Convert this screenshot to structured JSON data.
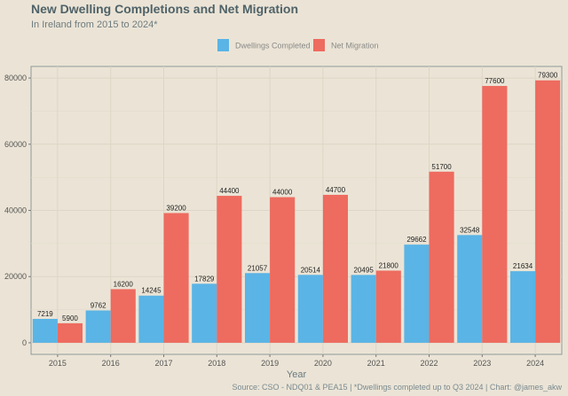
{
  "chart_data": {
    "type": "bar",
    "title": "New Dwelling Completions and Net Migration",
    "subtitle": "In Ireland from 2015 to 2024*",
    "xlabel": "Year",
    "ylabel": "",
    "caption": "Source: CSO - NDQ01 & PEA15 | *Dwellings completed up to Q3 2024 | Chart: @james_akw",
    "categories": [
      "2015",
      "2016",
      "2017",
      "2018",
      "2019",
      "2020",
      "2021",
      "2022",
      "2023",
      "2024"
    ],
    "series": [
      {
        "name": "Dwellings Completed",
        "color": "#5ab4e5",
        "values": [
          7219,
          9762,
          14245,
          17829,
          21057,
          20514,
          20495,
          29662,
          32548,
          21634
        ]
      },
      {
        "name": "Net Migration",
        "color": "#ee6b5f",
        "values": [
          5900,
          16200,
          39200,
          44400,
          44000,
          44700,
          21800,
          51700,
          77600,
          79300
        ]
      }
    ],
    "ylim": [
      -3500,
      83500
    ],
    "yticks": [
      0,
      20000,
      40000,
      60000,
      80000
    ],
    "grid": true,
    "legend_position": "top"
  }
}
